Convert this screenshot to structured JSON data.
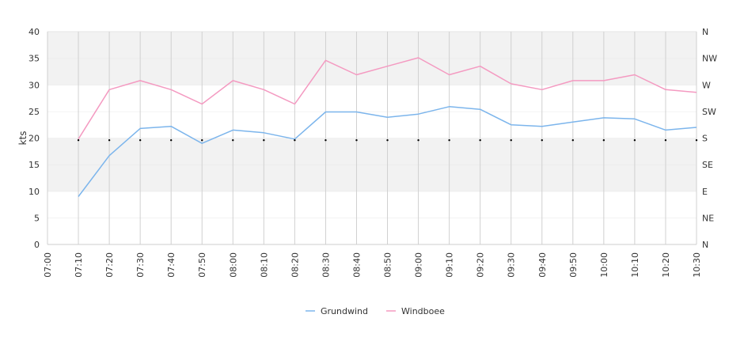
{
  "chart_data": {
    "type": "line",
    "ylabel": "kts",
    "ylim": [
      0,
      40
    ],
    "y_ticks": [
      "0",
      "5",
      "10",
      "15",
      "20",
      "25",
      "30",
      "35",
      "40"
    ],
    "right_axis_labels": [
      "N",
      "NE",
      "E",
      "SE",
      "S",
      "SW",
      "W",
      "NW",
      "N"
    ],
    "x": [
      "07:00",
      "07:10",
      "07:20",
      "07:30",
      "07:40",
      "07:50",
      "08:00",
      "08:10",
      "08:20",
      "08:30",
      "08:40",
      "08:50",
      "09:00",
      "09:10",
      "09:20",
      "09:30",
      "09:40",
      "09:50",
      "10:00",
      "10:10",
      "10:20",
      "10:30"
    ],
    "grid": "horizontal alternating bands with vertical gridlines",
    "legend_position": "bottom-center",
    "series": [
      {
        "name": "Grundwind",
        "color": "#7cb5ec",
        "values": [
          null,
          9.0,
          16.7,
          21.8,
          22.2,
          19.0,
          21.5,
          21.0,
          19.8,
          24.9,
          24.9,
          23.9,
          24.5,
          25.9,
          25.4,
          22.5,
          22.2,
          23.0,
          23.8,
          23.6,
          21.5,
          22.0
        ]
      },
      {
        "name": "Windboee",
        "color": "#f49ac1",
        "values": [
          null,
          19.8,
          29.1,
          30.8,
          29.1,
          26.4,
          30.8,
          29.1,
          26.4,
          34.6,
          31.9,
          33.5,
          35.1,
          31.9,
          33.5,
          30.2,
          29.1,
          30.8,
          30.8,
          31.9,
          29.1,
          28.6
        ]
      }
    ],
    "direction_markers": {
      "note_value_level": 19.6,
      "count": 21
    }
  }
}
